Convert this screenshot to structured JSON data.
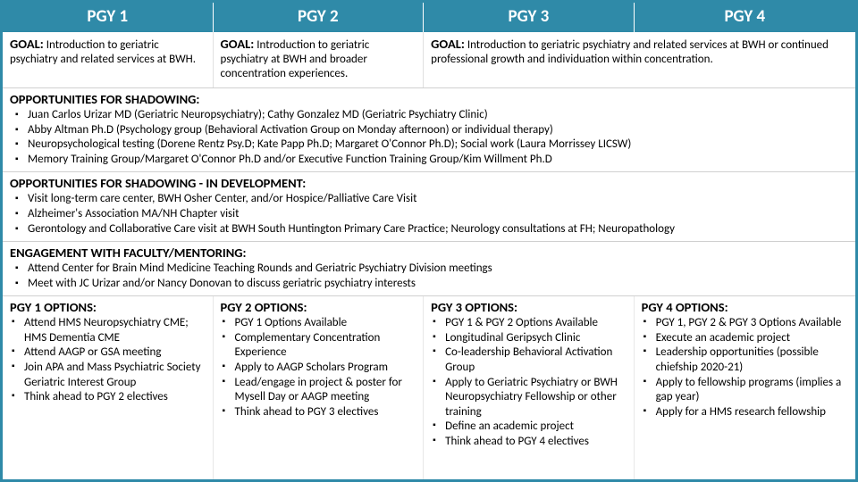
{
  "colors": {
    "accent": "#2f8aa8",
    "text": "#000000",
    "bg": "#ffffff"
  },
  "header": {
    "c1": "PGY 1",
    "c2": "PGY 2",
    "c3": "PGY 3",
    "c4": "PGY 4"
  },
  "goals": {
    "label": "GOAL:",
    "g1": " Introduction to geriatric psychiatry and related services at BWH.",
    "g2": " Introduction to geriatric psychiatry at BWH and broader concentration experiences.",
    "g34": " Introduction to geriatric psychiatry and related services at BWH or continued professional growth and individuation within concentration."
  },
  "shadow": {
    "title": "OPPORTUNITIES FOR SHADOWING:",
    "items": [
      "Juan Carlos Urizar MD (Geriatric Neuropsychiatry); Cathy Gonzalez MD (Geriatric Psychiatry Clinic)",
      "Abby Altman Ph.D (Psychology group (Behavioral Activation Group on Monday afternoon) or individual therapy)",
      "Neuropsychological testing (Dorene Rentz Psy.D; Kate Papp Ph.D; Margaret O'Connor Ph.D); Social work (Laura Morrissey LICSW)",
      "Memory Training Group/Margaret O'Connor Ph.D and/or Executive Function Training Group/Kim Willment Ph.D"
    ]
  },
  "shadow_dev": {
    "title": "OPPORTUNITIES FOR SHADOWING - IN DEVELOPMENT:",
    "items": [
      "Visit long-term care center, BWH Osher Center, and/or Hospice/Palliative Care Visit",
      "Alzheimer's Association MA/NH Chapter visit",
      "Gerontology and Collaborative Care visit at BWH South Huntington Primary Care Practice; Neurology consultations at FH; Neuropathology"
    ]
  },
  "engage": {
    "title": "ENGAGEMENT WITH FACULTY/MENTORING:",
    "items": [
      "Attend Center for Brain Mind Medicine Teaching Rounds and Geriatric Psychiatry Division meetings",
      "Meet with JC Urizar and/or Nancy Donovan to discuss geriatric psychiatry interests"
    ]
  },
  "options": {
    "h1": "PGY 1 OPTIONS:",
    "h2": "PGY 2 OPTIONS:",
    "h3": "PGY 3 OPTIONS:",
    "h4": "PGY 4 OPTIONS:",
    "p1": [
      "Attend HMS Neuropsychiatry CME; HMS Dementia CME",
      "Attend AAGP or GSA meeting",
      "Join APA and Mass Psychiatric Society Geriatric Interest Group",
      "Think ahead to PGY 2 electives"
    ],
    "p2": [
      "PGY 1 Options Available",
      "Complementary Concentration Experience",
      "Apply to AAGP Scholars Program",
      "Lead/engage in project & poster for Mysell Day or AAGP meeting",
      "Think ahead to PGY 3 electives"
    ],
    "p3": [
      "PGY 1 & PGY 2 Options Available",
      "Longitudinal Geripsych Clinic",
      "Co-leadership Behavioral Activation Group",
      "Apply to Geriatric Psychiatry or BWH Neuropsychiatry Fellowship or other training",
      "Define an academic project",
      "Think ahead to PGY 4 electives"
    ],
    "p4": [
      "PGY 1, PGY 2 & PGY 3 Options Available",
      "Execute an academic project",
      "Leadership opportunities (possible chiefship 2020-21)",
      "Apply to fellowship programs (implies a gap year)",
      "Apply for a HMS research fellowship"
    ]
  }
}
